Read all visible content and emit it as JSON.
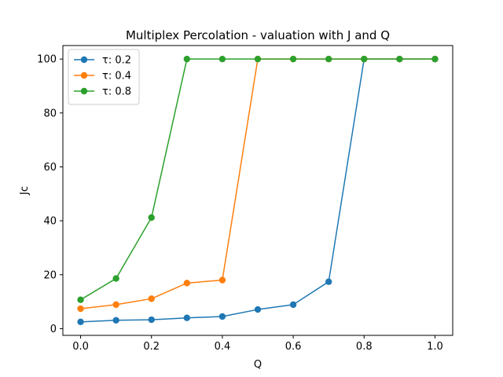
{
  "chart_data": {
    "type": "line",
    "title": "Multiplex Percolation - valuation with J and Q",
    "xlabel": "Q",
    "ylabel": "Jc",
    "xlim": [
      -0.05,
      1.05
    ],
    "ylim": [
      -2.5,
      105
    ],
    "x_ticks": [
      "0.0",
      "0.2",
      "0.4",
      "0.6",
      "0.8",
      "1.0"
    ],
    "y_ticks": [
      "0",
      "20",
      "40",
      "60",
      "80",
      "100"
    ],
    "grid": false,
    "legend_position": "top-left",
    "x": [
      0.0,
      0.1,
      0.2,
      0.3,
      0.4,
      0.5,
      0.6,
      0.7,
      0.8,
      0.9,
      1.0
    ],
    "series": [
      {
        "name": "τ: 0.2",
        "color": "#1f77b4",
        "values": [
          2.5,
          3.1,
          3.3,
          4.0,
          4.5,
          7.1,
          8.9,
          17.4,
          100,
          100,
          100
        ]
      },
      {
        "name": "τ: 0.4",
        "color": "#ff7f0e",
        "values": [
          7.4,
          8.9,
          11.1,
          16.9,
          18.0,
          100,
          100,
          100,
          100,
          100,
          100
        ]
      },
      {
        "name": "τ: 0.8",
        "color": "#2ca02c",
        "values": [
          10.7,
          18.6,
          41.2,
          100,
          100,
          100,
          100,
          100,
          100,
          100,
          100
        ]
      }
    ]
  }
}
